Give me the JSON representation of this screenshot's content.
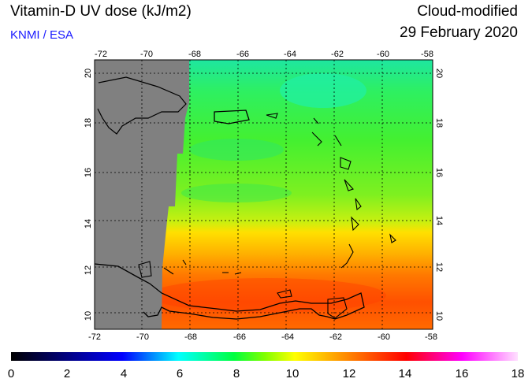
{
  "header": {
    "title": "Vitamin-D UV dose (kJ/m2)",
    "credit": "KNMI / ESA",
    "mode": "Cloud-modified",
    "date": "29 February 2020"
  },
  "map": {
    "lon_range": [
      -72,
      -58
    ],
    "lat_range": [
      9.5,
      20.5
    ],
    "lon_ticks": [
      "-72",
      "-70",
      "-68",
      "-66",
      "-64",
      "-62",
      "-60",
      "-58"
    ],
    "lat_ticks": [
      "10",
      "12",
      "14",
      "16",
      "18",
      "20"
    ],
    "no_data_color": "#808080",
    "grid": "dotted"
  },
  "colorbar": {
    "ticks": [
      "0",
      "2",
      "4",
      "6",
      "8",
      "10",
      "12",
      "14",
      "16",
      "18"
    ],
    "range": [
      0,
      18
    ]
  }
}
